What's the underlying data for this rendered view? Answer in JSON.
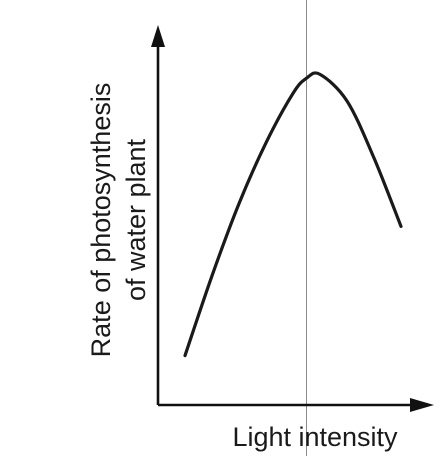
{
  "chart_data": {
    "type": "line",
    "title": "",
    "xlabel": "Light intensity",
    "ylabel_lines": [
      "Rate of photosynthesis",
      "of water plant"
    ],
    "x_ticks": "none",
    "y_ticks": "none",
    "xlim": [
      0,
      10
    ],
    "ylim": [
      0,
      10
    ],
    "grid": false,
    "legend": "none",
    "series": [
      {
        "values_note": "",
        "x": [
          1.0,
          2.0,
          3.0,
          4.0,
          5.0,
          5.5,
          6.0,
          7.0,
          8.0,
          9.0
        ],
        "y": [
          1.3,
          3.4,
          5.3,
          6.9,
          8.2,
          8.6,
          8.7,
          8.0,
          6.5,
          4.7
        ]
      }
    ],
    "reference_line": {
      "orientation": "vertical",
      "x": 5.5
    },
    "colors": {
      "axis": "#111111",
      "curve": "#1a1a1a",
      "reference": "#8a8a8a"
    }
  }
}
